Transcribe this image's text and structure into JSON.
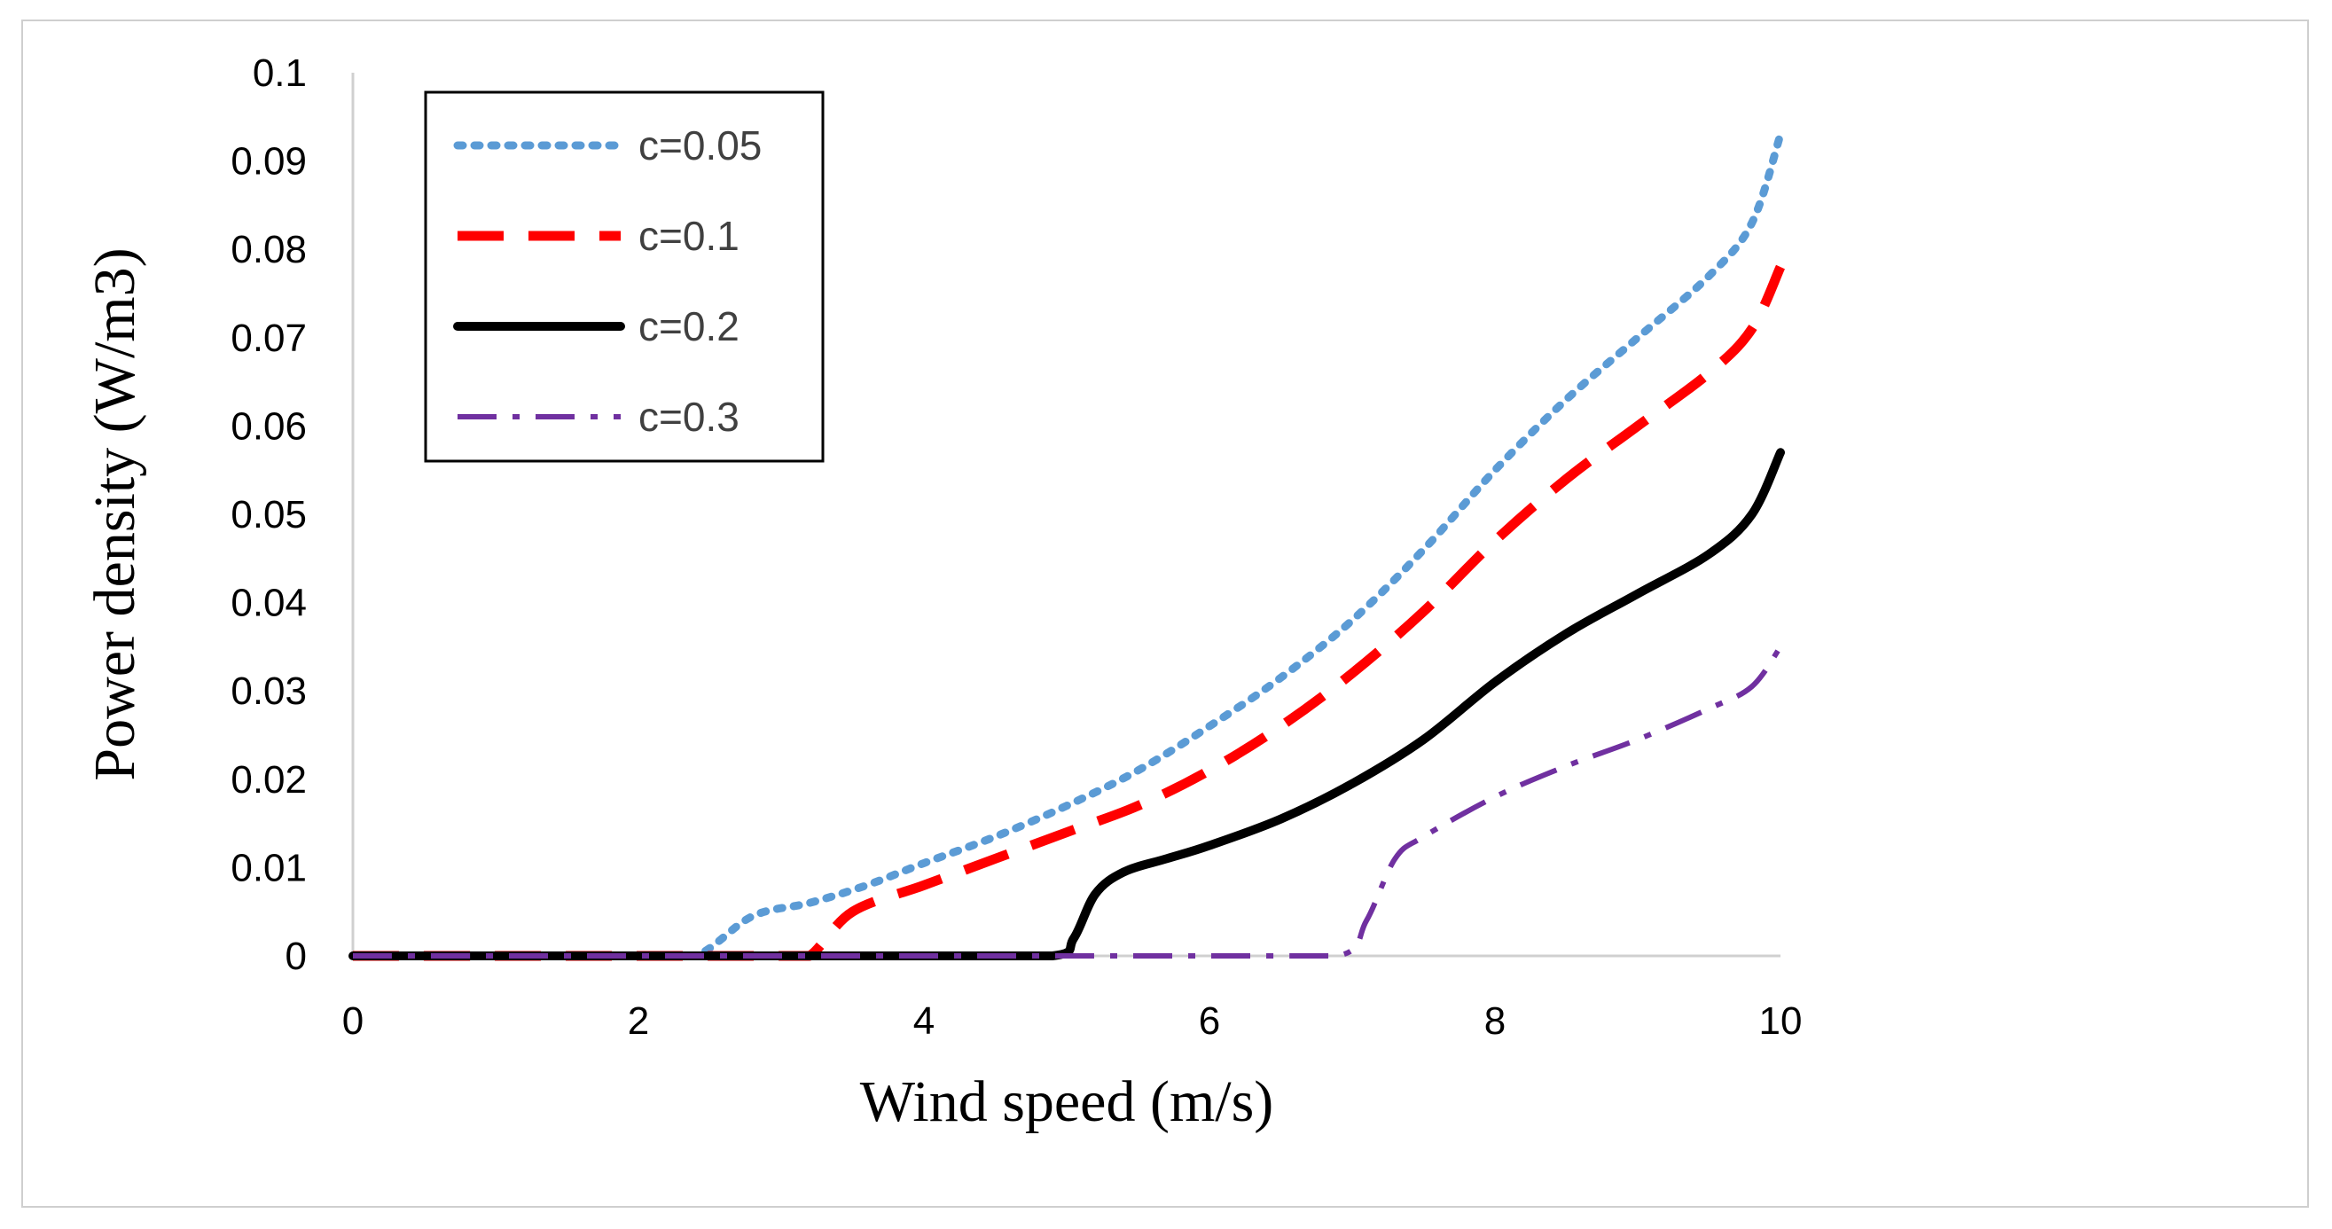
{
  "chart_data": {
    "type": "line",
    "title": "",
    "xlabel": "Wind speed (m/s)",
    "ylabel": "Power density (W/m3)",
    "xlim": [
      0,
      10
    ],
    "ylim": [
      0,
      0.1
    ],
    "x_ticks": [
      "0",
      "2",
      "4",
      "6",
      "8",
      "10"
    ],
    "x_tick_values": [
      0,
      2,
      4,
      6,
      8,
      10
    ],
    "y_ticks": [
      "0",
      "0.01",
      "0.02",
      "0.03",
      "0.04",
      "0.05",
      "0.06",
      "0.07",
      "0.08",
      "0.09",
      "0.1"
    ],
    "y_tick_values": [
      0,
      0.01,
      0.02,
      0.03,
      0.04,
      0.05,
      0.06,
      0.07,
      0.08,
      0.09,
      0.1
    ],
    "grid": false,
    "legend_position": "top-left",
    "series": [
      {
        "name": "c=0.05",
        "color": "#5B9BD5",
        "style": "dotted",
        "x": [
          0,
          1,
          2,
          2.4,
          2.8,
          3.2,
          3.6,
          4,
          4.5,
          5,
          5.5,
          6,
          6.5,
          7,
          7.5,
          8,
          8.5,
          9,
          9.5,
          9.8,
          10
        ],
        "y": [
          0,
          0,
          0,
          0,
          0.0045,
          0.006,
          0.008,
          0.0105,
          0.0135,
          0.017,
          0.021,
          0.026,
          0.0315,
          0.038,
          0.046,
          0.055,
          0.063,
          0.07,
          0.077,
          0.083,
          0.093
        ]
      },
      {
        "name": "c=0.1",
        "color": "#FF0000",
        "style": "dashed",
        "x": [
          0,
          1,
          2,
          3,
          3.2,
          3.5,
          4,
          4.5,
          5,
          5.5,
          6,
          6.5,
          7,
          7.5,
          8,
          8.5,
          9,
          9.5,
          9.8,
          10
        ],
        "y": [
          0,
          0,
          0,
          0,
          0,
          0.005,
          0.008,
          0.011,
          0.014,
          0.017,
          0.021,
          0.026,
          0.032,
          0.039,
          0.047,
          0.054,
          0.06,
          0.066,
          0.071,
          0.078
        ]
      },
      {
        "name": "c=0.2",
        "color": "#000000",
        "style": "solid",
        "x": [
          0,
          1,
          2,
          3,
          4,
          4.9,
          5.05,
          5.2,
          5.4,
          5.7,
          6,
          6.5,
          7,
          7.5,
          8,
          8.5,
          9,
          9.5,
          9.8,
          10
        ],
        "y": [
          0,
          0,
          0,
          0,
          0,
          0,
          0.002,
          0.007,
          0.0095,
          0.011,
          0.0125,
          0.0155,
          0.0195,
          0.0245,
          0.031,
          0.0365,
          0.041,
          0.0455,
          0.05,
          0.057
        ]
      },
      {
        "name": "c=0.3",
        "color": "#7030A0",
        "style": "dash-dot",
        "x": [
          0,
          1,
          2,
          3,
          4,
          5,
          6,
          6.9,
          7.1,
          7.3,
          7.5,
          8,
          8.5,
          9,
          9.5,
          9.8,
          10
        ],
        "y": [
          0,
          0,
          0,
          0,
          0,
          0,
          0,
          0,
          0.004,
          0.011,
          0.0135,
          0.018,
          0.0215,
          0.0245,
          0.028,
          0.0305,
          0.035
        ]
      }
    ]
  }
}
